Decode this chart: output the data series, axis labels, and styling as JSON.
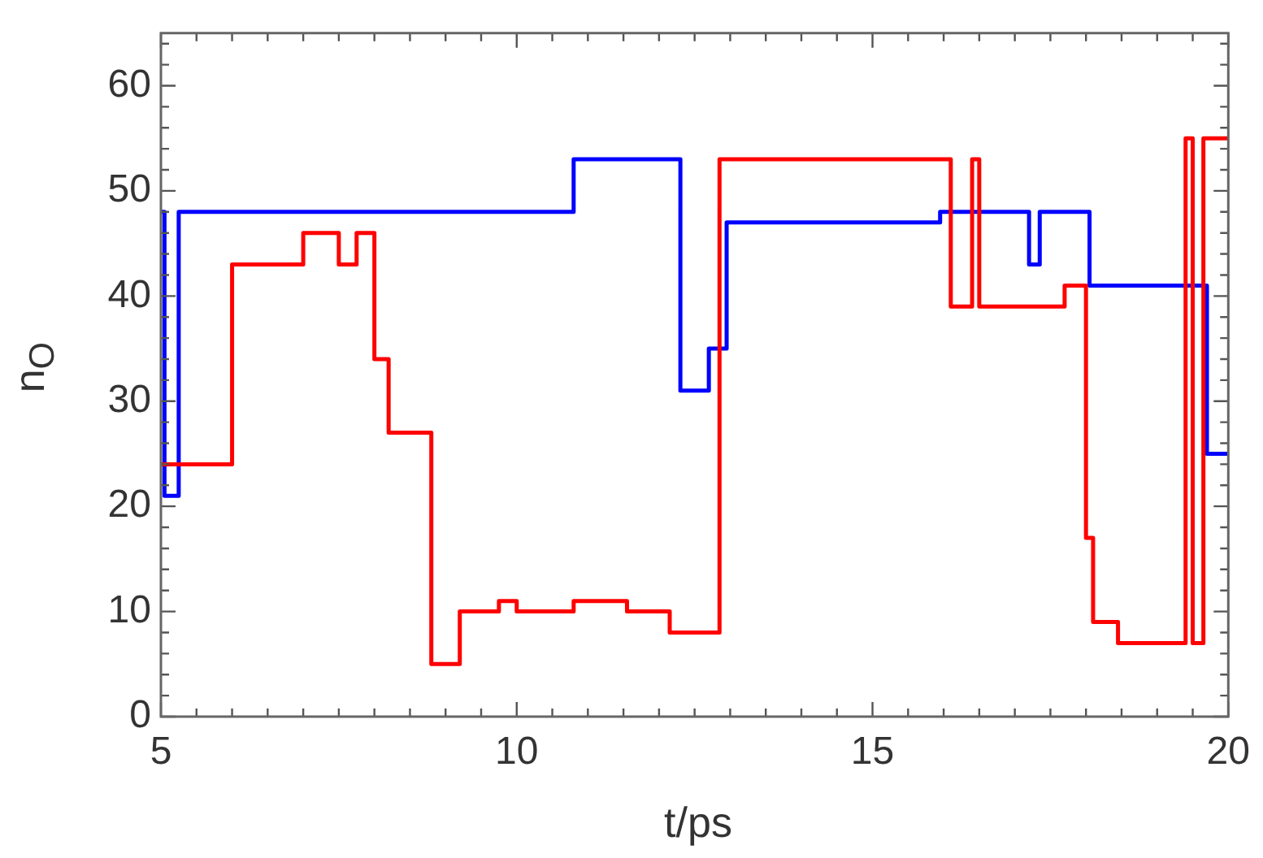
{
  "chart_data": {
    "type": "step",
    "xlabel": "t/ps",
    "ylabel": "n$_{O}$",
    "xlim": [
      5,
      20
    ],
    "ylim": [
      0,
      65
    ],
    "xticks": [
      5,
      {
        "value": 5.5,
        "label": null
      },
      {
        "value": 6,
        "label": null
      },
      {
        "value": 6.5,
        "label": null
      },
      {
        "value": 7,
        "label": null
      },
      {
        "value": 7.5,
        "label": null
      },
      {
        "value": 8,
        "label": null
      },
      {
        "value": 8.5,
        "label": null
      },
      {
        "value": 9,
        "label": null
      },
      {
        "value": 9.5,
        "label": null
      },
      10,
      {
        "value": 10.5,
        "label": null
      },
      {
        "value": 11,
        "label": null
      },
      {
        "value": 11.5,
        "label": null
      },
      {
        "value": 12,
        "label": null
      },
      {
        "value": 12.5,
        "label": null
      },
      {
        "value": 13,
        "label": null
      },
      {
        "value": 13.5,
        "label": null
      },
      {
        "value": 14,
        "label": null
      },
      {
        "value": 14.5,
        "label": null
      },
      15,
      {
        "value": 15.5,
        "label": null
      },
      {
        "value": 16,
        "label": null
      },
      {
        "value": 16.5,
        "label": null
      },
      {
        "value": 17,
        "label": null
      },
      {
        "value": 17.5,
        "label": null
      },
      {
        "value": 18,
        "label": null
      },
      {
        "value": 18.5,
        "label": null
      },
      {
        "value": 19,
        "label": null
      },
      {
        "value": 19.5,
        "label": null
      },
      20
    ],
    "yticks": [
      0,
      {
        "value": 2,
        "label": null
      },
      {
        "value": 4,
        "label": null
      },
      {
        "value": 6,
        "label": null
      },
      {
        "value": 8,
        "label": null
      },
      10,
      {
        "value": 12,
        "label": null
      },
      {
        "value": 14,
        "label": null
      },
      {
        "value": 16,
        "label": null
      },
      {
        "value": 18,
        "label": null
      },
      20,
      {
        "value": 22,
        "label": null
      },
      {
        "value": 24,
        "label": null
      },
      {
        "value": 26,
        "label": null
      },
      {
        "value": 28,
        "label": null
      },
      30,
      {
        "value": 32,
        "label": null
      },
      {
        "value": 34,
        "label": null
      },
      {
        "value": 36,
        "label": null
      },
      {
        "value": 38,
        "label": null
      },
      40,
      {
        "value": 42,
        "label": null
      },
      {
        "value": 44,
        "label": null
      },
      {
        "value": 46,
        "label": null
      },
      {
        "value": 48,
        "label": null
      },
      50,
      {
        "value": 52,
        "label": null
      },
      {
        "value": 54,
        "label": null
      },
      {
        "value": 56,
        "label": null
      },
      {
        "value": 58,
        "label": null
      },
      60,
      {
        "value": 62,
        "label": null
      },
      {
        "value": 64,
        "label": null
      }
    ],
    "grid": false,
    "legend": false,
    "line_style": "solid",
    "marker": "none",
    "series": [
      {
        "color": "#ff0000",
        "x": [
          5,
          6,
          7,
          7.5,
          7.75,
          8,
          8.2,
          8.8,
          9.2,
          9.75,
          10,
          10.8,
          11.55,
          12.15,
          12.85,
          16.1,
          16.4,
          16.5,
          17.7,
          18,
          18.1,
          18.45,
          19.4,
          19.5,
          19.65,
          20
        ],
        "values": [
          24,
          43,
          46,
          43,
          46,
          34,
          27,
          5,
          10,
          11,
          10,
          11,
          10,
          8,
          53,
          39,
          53,
          39,
          41,
          17,
          9,
          7,
          55,
          7,
          55,
          55
        ]
      },
      {
        "color": "#0000ff",
        "x": [
          5,
          5.05,
          5.25,
          10.8,
          12.3,
          12.7,
          12.95,
          15.95,
          17.2,
          17.35,
          18.05,
          19.7,
          20
        ],
        "values": [
          48,
          21,
          48,
          53,
          31,
          35,
          47,
          48,
          43,
          48,
          41,
          25,
          25
        ]
      }
    ]
  }
}
